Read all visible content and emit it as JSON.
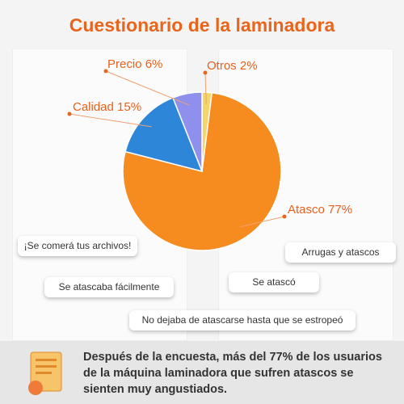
{
  "chart_data": {
    "type": "pie",
    "title": "Cuestionario de la laminadora",
    "categories": [
      "Otros",
      "Atasco",
      "Calidad",
      "Precio"
    ],
    "values": [
      2,
      77,
      15,
      6
    ],
    "value_labels": [
      "2%",
      "77%",
      "15%",
      "6%"
    ],
    "colors": [
      "#f3d56a",
      "#f68b1f",
      "#2e86d8",
      "#8f90ee"
    ]
  },
  "comments": [
    "¡Se comerá tus archivos!",
    "Arrugas y atascos",
    "Se atascaba fácilmente",
    "Se atascó",
    "No dejaba de atascarse hasta que se estropeó"
  ],
  "footer": "Después de la encuesta, más del 77% de los usuarios de la máquina laminadora que sufren atascos se sienten muy angustiados."
}
